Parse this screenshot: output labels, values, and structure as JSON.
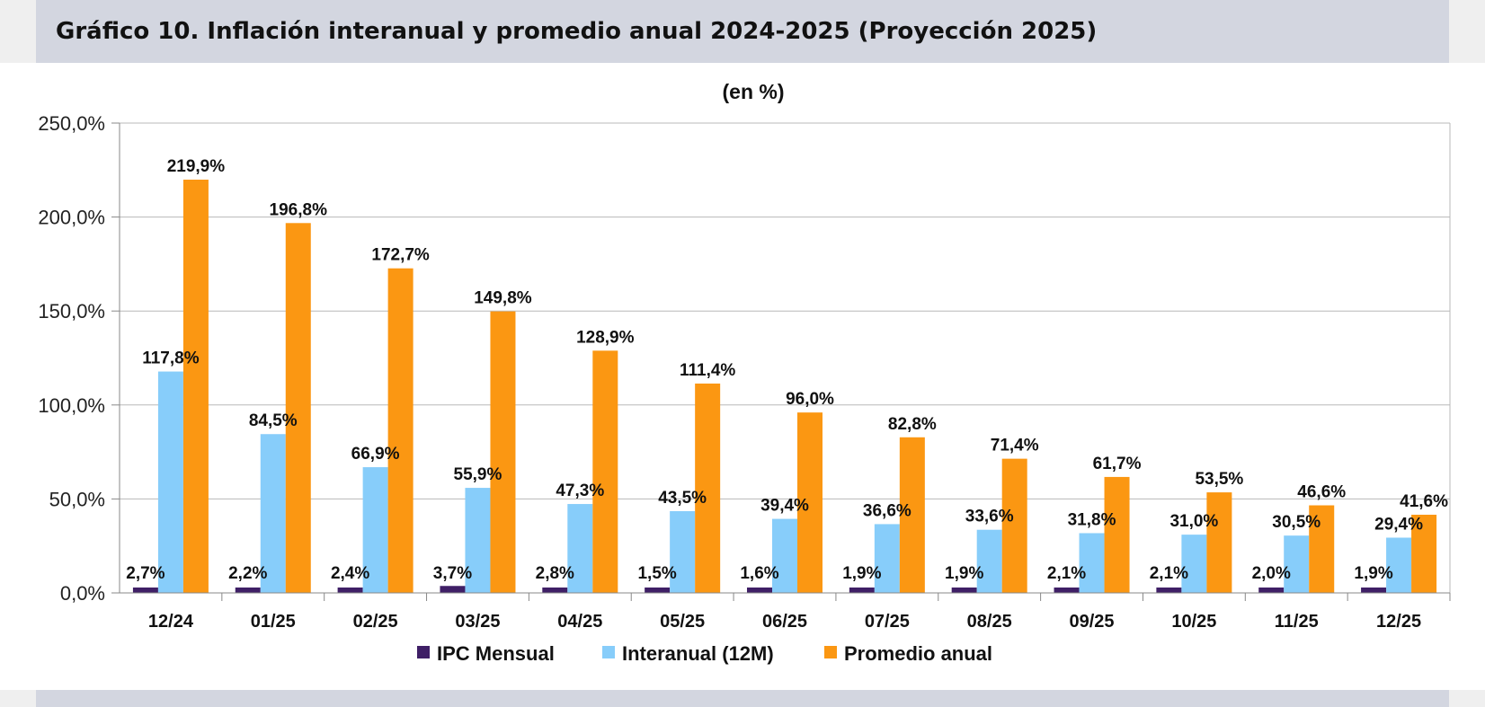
{
  "header": {
    "title": "Gráfico 10. Inflación interanual y promedio anual 2024-2025 (Proyección 2025)"
  },
  "chart_data": {
    "type": "bar",
    "subtitle": "(en %)",
    "categories": [
      "12/24",
      "01/25",
      "02/25",
      "03/25",
      "04/25",
      "05/25",
      "06/25",
      "07/25",
      "08/25",
      "09/25",
      "10/25",
      "11/25",
      "12/25"
    ],
    "series": [
      {
        "name": "IPC Mensual",
        "color": "#3f1f66",
        "values": [
          2.7,
          2.2,
          2.4,
          3.7,
          2.8,
          1.5,
          1.6,
          1.9,
          1.9,
          2.1,
          2.1,
          2.0,
          1.9
        ],
        "labels": [
          "2,7%",
          "2,2%",
          "2,4%",
          "3,7%",
          "2,8%",
          "1,5%",
          "1,6%",
          "1,9%",
          "1,9%",
          "2,1%",
          "2,1%",
          "2,0%",
          "1,9%"
        ]
      },
      {
        "name": "Interanual (12M)",
        "color": "#87cdfa",
        "values": [
          117.8,
          84.5,
          66.9,
          55.9,
          47.3,
          43.5,
          39.4,
          36.6,
          33.6,
          31.8,
          31.0,
          30.5,
          29.4
        ],
        "labels": [
          "117,8%",
          "84,5%",
          "66,9%",
          "55,9%",
          "47,3%",
          "43,5%",
          "39,4%",
          "36,6%",
          "33,6%",
          "31,8%",
          "31,0%",
          "30,5%",
          "29,4%"
        ]
      },
      {
        "name": "Promedio anual",
        "color": "#fb9712",
        "values": [
          219.9,
          196.8,
          172.7,
          149.8,
          128.9,
          111.4,
          96.0,
          82.8,
          71.4,
          61.7,
          53.5,
          46.6,
          41.6
        ],
        "labels": [
          "219,9%",
          "196,8%",
          "172,7%",
          "149,8%",
          "128,9%",
          "111,4%",
          "96,0%",
          "82,8%",
          "71,4%",
          "61,7%",
          "53,5%",
          "46,6%",
          "41,6%"
        ]
      }
    ],
    "ylim": [
      0,
      250
    ],
    "yticks": [
      0,
      50,
      100,
      150,
      200,
      250
    ],
    "ytick_labels": [
      "0,0%",
      "50,0%",
      "100,0%",
      "150,0%",
      "200,0%",
      "250,0%"
    ],
    "grid": true,
    "legend_position": "bottom"
  }
}
